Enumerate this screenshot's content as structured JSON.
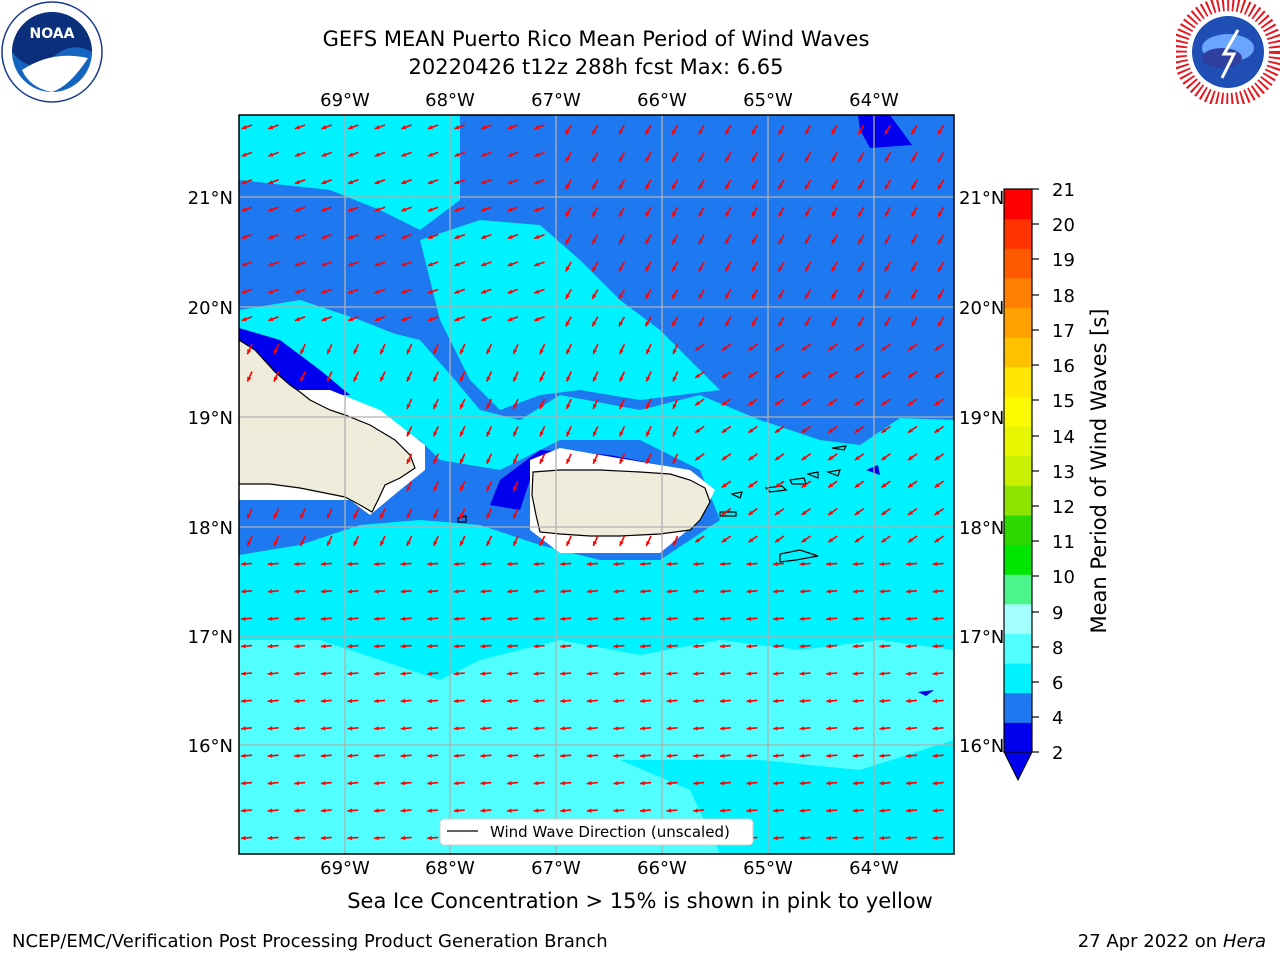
{
  "header": {
    "title_line1": "GEFS MEAN Puerto Rico Mean Period of Wind Waves",
    "title_line2": "20220426 t12z 288h fcst   Max: 6.65"
  },
  "map": {
    "lon_labels": [
      "69°W",
      "68°W",
      "67°W",
      "66°W",
      "65°W",
      "64°W"
    ],
    "lat_labels": [
      "21°N",
      "20°N",
      "19°N",
      "18°N",
      "17°N",
      "16°N"
    ],
    "legend_label": "Wind Wave Direction (unscaled)",
    "arrow_color": "#ff0000",
    "land_color": "#efecdc",
    "water_colors": {
      "dark_blue": "#0000ee",
      "mid_blue": "#1e78f0",
      "cyan": "#00f2ff",
      "light_cyan": "#52ffff"
    }
  },
  "colorbar": {
    "label": "Mean Period of Wind Waves [s]",
    "ticks": [
      "21",
      "20",
      "19",
      "18",
      "17",
      "16",
      "15",
      "14",
      "13",
      "12",
      "11",
      "10",
      "9",
      "8",
      "6",
      "4",
      "2"
    ],
    "colors": [
      "#0000ee",
      "#1e78f0",
      "#00f2ff",
      "#52ffff",
      "#a6ffff",
      "#4cf58c",
      "#00e600",
      "#2dd800",
      "#8ee400",
      "#c8f000",
      "#e6f500",
      "#fafa00",
      "#ffe600",
      "#ffc000",
      "#ffa000",
      "#ff8000",
      "#ff5a00",
      "#ff3200",
      "#ff0000"
    ]
  },
  "note": "Sea Ice Concentration > 15% is shown in pink to yellow",
  "footer": {
    "left": "NCEP/EMC/Verification Post Processing Product Generation Branch",
    "right_prefix": "27 Apr 2022 on ",
    "right_italic": "Hera"
  }
}
